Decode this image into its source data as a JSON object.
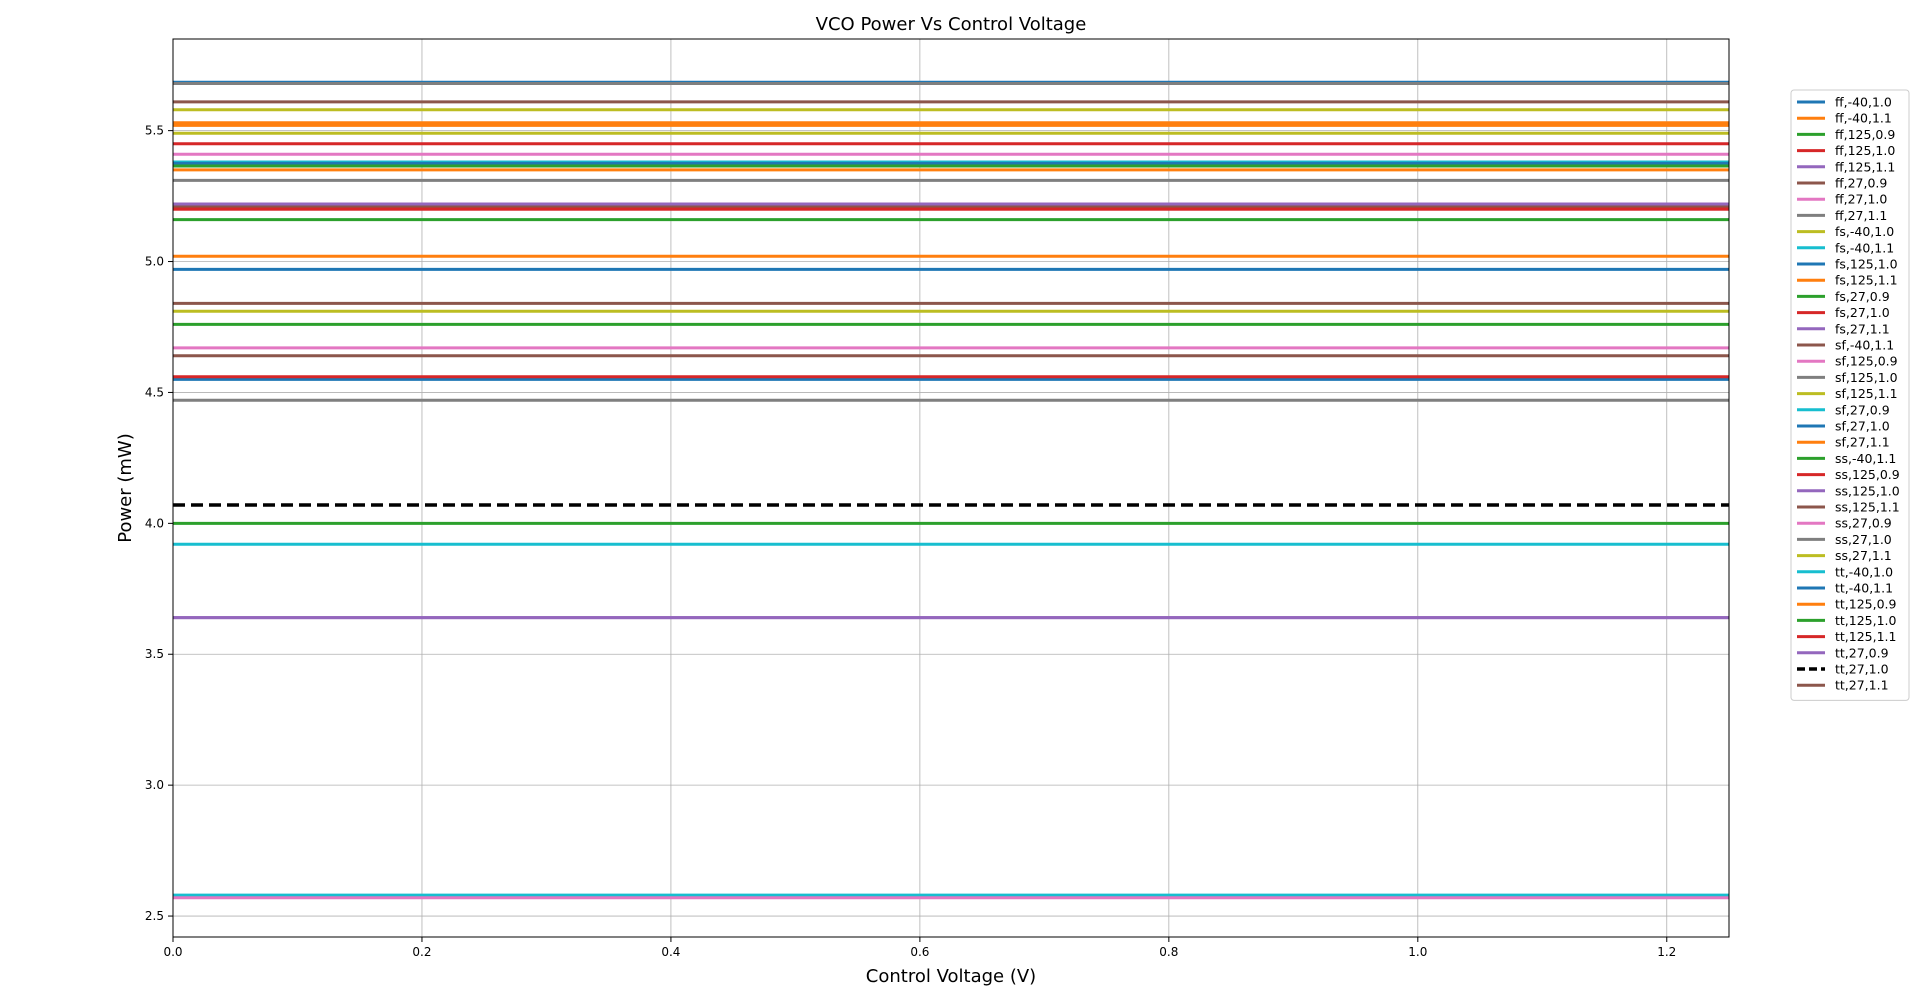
{
  "chart_data": {
    "type": "line",
    "title": "VCO Power Vs Control Voltage",
    "xlabel": "Control Voltage (V)",
    "ylabel": "Power (mW)",
    "xlim": [
      0.0,
      1.25
    ],
    "ylim": [
      2.42,
      5.85
    ],
    "x": [
      0.0,
      1.25
    ],
    "x_ticks": [
      "0.0",
      "0.2",
      "0.4",
      "0.6",
      "0.8",
      "1.0",
      "1.2"
    ],
    "x_tick_values": [
      0.0,
      0.2,
      0.4,
      0.6,
      0.8,
      1.0,
      1.2
    ],
    "y_ticks": [
      "2.5",
      "3.0",
      "3.5",
      "4.0",
      "4.5",
      "5.0",
      "5.5"
    ],
    "y_tick_values": [
      2.5,
      3.0,
      3.5,
      4.0,
      4.5,
      5.0,
      5.5
    ],
    "grid": true,
    "legend_position": "right",
    "series": [
      {
        "name": "ff,-40,1.0",
        "color": "#1f77b4",
        "style": "solid",
        "values": [
          5.685,
          5.685
        ]
      },
      {
        "name": "ff,-40,1.1",
        "color": "#ff7f0e",
        "style": "solid",
        "values": [
          5.53,
          5.53
        ]
      },
      {
        "name": "ff,125,0.9",
        "color": "#2ca02c",
        "style": "solid",
        "values": [
          5.16,
          5.16
        ]
      },
      {
        "name": "ff,125,1.0",
        "color": "#d62728",
        "style": "solid",
        "values": [
          5.45,
          5.45
        ]
      },
      {
        "name": "ff,125,1.1",
        "color": "#9467bd",
        "style": "solid",
        "values": [
          5.68,
          5.68
        ]
      },
      {
        "name": "ff,27,0.9",
        "color": "#8c564b",
        "style": "solid",
        "values": [
          5.21,
          5.21
        ]
      },
      {
        "name": "ff,27,1.0",
        "color": "#e377c2",
        "style": "solid",
        "values": [
          5.41,
          5.41
        ]
      },
      {
        "name": "ff,27,1.1",
        "color": "#7f7f7f",
        "style": "solid",
        "values": [
          5.68,
          5.68
        ]
      },
      {
        "name": "fs,-40,1.0",
        "color": "#bcbd22",
        "style": "solid",
        "values": [
          5.58,
          5.58
        ]
      },
      {
        "name": "fs,-40,1.1",
        "color": "#17becf",
        "style": "solid",
        "values": [
          5.38,
          5.38
        ]
      },
      {
        "name": "fs,125,1.0",
        "color": "#1f77b4",
        "style": "solid",
        "values": [
          4.97,
          4.97
        ]
      },
      {
        "name": "fs,125,1.1",
        "color": "#ff7f0e",
        "style": "solid",
        "values": [
          5.02,
          5.02
        ]
      },
      {
        "name": "fs,27,0.9",
        "color": "#2ca02c",
        "style": "solid",
        "values": [
          4.76,
          4.76
        ]
      },
      {
        "name": "fs,27,1.0",
        "color": "#d62728",
        "style": "solid",
        "values": [
          5.2,
          5.2
        ]
      },
      {
        "name": "fs,27,1.1",
        "color": "#9467bd",
        "style": "solid",
        "values": [
          5.22,
          5.22
        ]
      },
      {
        "name": "sf,-40,1.1",
        "color": "#8c564b",
        "style": "solid",
        "values": [
          4.84,
          4.84
        ]
      },
      {
        "name": "sf,125,0.9",
        "color": "#e377c2",
        "style": "solid",
        "values": [
          4.67,
          4.67
        ]
      },
      {
        "name": "sf,125,1.0",
        "color": "#7f7f7f",
        "style": "solid",
        "values": [
          5.31,
          5.31
        ]
      },
      {
        "name": "sf,125,1.1",
        "color": "#bcbd22",
        "style": "solid",
        "values": [
          4.81,
          4.81
        ]
      },
      {
        "name": "sf,27,0.9",
        "color": "#17becf",
        "style": "solid",
        "values": [
          2.58,
          2.58
        ]
      },
      {
        "name": "sf,27,1.0",
        "color": "#1f77b4",
        "style": "solid",
        "values": [
          4.55,
          4.55
        ]
      },
      {
        "name": "sf,27,1.1",
        "color": "#ff7f0e",
        "style": "solid",
        "values": [
          5.35,
          5.35
        ]
      },
      {
        "name": "ss,-40,1.1",
        "color": "#2ca02c",
        "style": "solid",
        "values": [
          4.0,
          4.0
        ]
      },
      {
        "name": "ss,125,0.9",
        "color": "#d62728",
        "style": "solid",
        "values": [
          4.56,
          4.56
        ]
      },
      {
        "name": "ss,125,1.0",
        "color": "#9467bd",
        "style": "solid",
        "values": [
          3.64,
          3.64
        ]
      },
      {
        "name": "ss,125,1.1",
        "color": "#8c564b",
        "style": "solid",
        "values": [
          4.64,
          4.64
        ]
      },
      {
        "name": "ss,27,0.9",
        "color": "#e377c2",
        "style": "solid",
        "values": [
          2.57,
          2.57
        ]
      },
      {
        "name": "ss,27,1.0",
        "color": "#7f7f7f",
        "style": "solid",
        "values": [
          4.47,
          4.47
        ]
      },
      {
        "name": "ss,27,1.1",
        "color": "#bcbd22",
        "style": "solid",
        "values": [
          5.49,
          5.49
        ]
      },
      {
        "name": "tt,-40,1.0",
        "color": "#17becf",
        "style": "solid",
        "values": [
          3.92,
          3.92
        ]
      },
      {
        "name": "tt,-40,1.1",
        "color": "#1f77b4",
        "style": "solid",
        "values": [
          5.375,
          5.375
        ]
      },
      {
        "name": "tt,125,0.9",
        "color": "#ff7f0e",
        "style": "solid",
        "values": [
          5.52,
          5.52
        ]
      },
      {
        "name": "tt,125,1.0",
        "color": "#2ca02c",
        "style": "solid",
        "values": [
          5.365,
          5.365
        ]
      },
      {
        "name": "tt,125,1.1",
        "color": "#d62728",
        "style": "solid",
        "values": [
          5.2,
          5.2
        ]
      },
      {
        "name": "tt,27,0.9",
        "color": "#9467bd",
        "style": "solid",
        "values": [
          3.64,
          3.64
        ]
      },
      {
        "name": "tt,27,1.0",
        "color": "#000000",
        "style": "dashed",
        "values": [
          4.07,
          4.07
        ]
      },
      {
        "name": "tt,27,1.1",
        "color": "#8c564b",
        "style": "solid",
        "values": [
          5.61,
          5.61
        ]
      }
    ]
  }
}
